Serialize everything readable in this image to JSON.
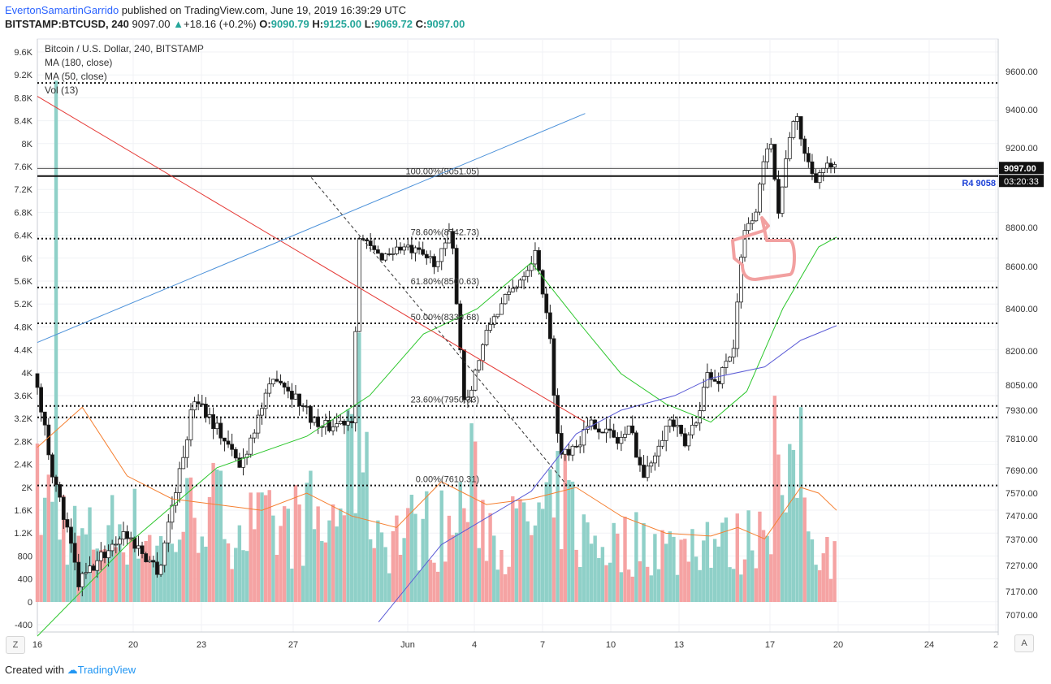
{
  "header": {
    "author": "EvertonSamartinGarrido",
    "published": "published on TradingView.com, June 19, 2019 16:39:29 UTC",
    "symbol": "BITSTAMP:BTCUSD, 240",
    "price": "9097.00",
    "change": "+18.16 (+0.2%)",
    "o_label": "O:",
    "o": "9090.79",
    "h_label": "H:",
    "h": "9125.00",
    "l_label": "L:",
    "l": "9069.72",
    "c_label": "C:",
    "c": "9097.00"
  },
  "legend": {
    "title": "Bitcoin / U.S. Dollar, 240, BITSTAMP",
    "ma180": "MA (180, close)",
    "ma50": "MA (50, close)",
    "vol": "Vol (13)"
  },
  "footer": {
    "created": "Created with",
    "brand": "TradingView"
  },
  "buttons": {
    "left": "Z",
    "right": "A"
  },
  "colors": {
    "up": "#26a69a",
    "down": "#ef5350",
    "vol_up": "#8fd0c8",
    "vol_down": "#f5a3a3",
    "ma180": "#5b5bd6",
    "ma50": "#2bc62b",
    "vol_ma": "#f57f30",
    "trend_red": "#e53935",
    "trend_blue": "#4a90d9"
  },
  "chart_data": {
    "type": "candlestick",
    "price_axis_ticks": [
      "9600.00",
      "9400.00",
      "9200.00",
      "8800.00",
      "8600.00",
      "8400.00",
      "8200.00",
      "8050.00",
      "7930.00",
      "7810.00",
      "7690.00",
      "7570.00",
      "7470.00",
      "7370.00",
      "7270.00",
      "7170.00",
      "7070.00"
    ],
    "volume_axis_ticks": [
      "9.6K",
      "9.2K",
      "8.8K",
      "8.4K",
      "8K",
      "7.6K",
      "7.2K",
      "6.8K",
      "6.4K",
      "6K",
      "5.6K",
      "5.2K",
      "4.8K",
      "4.4K",
      "4K",
      "3.6K",
      "3.2K",
      "2.8K",
      "2.4K",
      "2K",
      "1.6K",
      "1.2K",
      "800",
      "400",
      "0",
      "-400"
    ],
    "x_ticks": [
      "16",
      "20",
      "23",
      "27",
      "Jun",
      "4",
      "7",
      "10",
      "13",
      "17",
      "20",
      "24",
      "2"
    ],
    "last_price_label": "9097.00",
    "countdown_label": "03:20:33",
    "pivot_label": "R4 9058",
    "fib_levels": [
      {
        "label": "100.00%(9051.05)",
        "price": 9051.05
      },
      {
        "label": "78.60%(8742.73)",
        "price": 8742.73
      },
      {
        "label": "61.80%(8500.63)",
        "price": 8500.63
      },
      {
        "label": "50.00%(8330.68)",
        "price": 8330.68
      },
      {
        "label": "23.60%(7950.33)",
        "price": 7950.33
      },
      {
        "label": "0.00%(7610.31)",
        "price": 7610.31
      }
    ],
    "hlines": [
      9540,
      9097,
      9058,
      8742.73,
      8500.63,
      8330.68,
      7950.33,
      7900,
      7610.31
    ],
    "trend_red": [
      [
        15.5,
        9470
      ],
      [
        21.6,
        7880
      ]
    ],
    "trend_blue": [
      [
        15.5,
        8240
      ],
      [
        21.6,
        9380
      ]
    ],
    "fib_dash": [
      [
        18.55,
        9051.05
      ],
      [
        21.4,
        7610.31
      ]
    ],
    "price_anchors": [
      [
        15.5,
        8100
      ],
      [
        15.75,
        7600
      ],
      [
        16.0,
        7200
      ],
      [
        16.5,
        7400
      ],
      [
        16.9,
        7250
      ],
      [
        17.3,
        8000
      ],
      [
        17.8,
        7700
      ],
      [
        18.2,
        8100
      ],
      [
        18.7,
        7850
      ],
      [
        19.05,
        7900
      ],
      [
        19.12,
        8750
      ],
      [
        19.35,
        8650
      ],
      [
        19.6,
        8700
      ],
      [
        19.85,
        8650
      ],
      [
        20.0,
        8620
      ],
      [
        20.15,
        8780
      ],
      [
        20.3,
        7950
      ],
      [
        20.6,
        8350
      ],
      [
        20.85,
        8500
      ],
      [
        21.0,
        8600
      ],
      [
        21.1,
        8680
      ],
      [
        21.25,
        8250
      ],
      [
        21.35,
        7750
      ],
      [
        21.55,
        7800
      ],
      [
        21.75,
        7880
      ],
      [
        22.0,
        7800
      ],
      [
        22.15,
        7850
      ],
      [
        22.3,
        7650
      ],
      [
        22.45,
        7800
      ],
      [
        22.6,
        7890
      ],
      [
        22.75,
        7780
      ],
      [
        22.9,
        7920
      ],
      [
        23.0,
        8100
      ],
      [
        23.1,
        8050
      ],
      [
        23.2,
        8150
      ],
      [
        23.3,
        8220
      ],
      [
        23.4,
        8750
      ],
      [
        23.55,
        8900
      ],
      [
        23.7,
        9300
      ],
      [
        23.8,
        8850
      ],
      [
        23.9,
        9250
      ],
      [
        24.0,
        9350
      ],
      [
        24.1,
        9150
      ],
      [
        24.2,
        9050
      ],
      [
        24.3,
        9100
      ],
      [
        24.4,
        9097
      ]
    ],
    "volume_anchors": [
      [
        15.5,
        2100
      ],
      [
        15.75,
        1800
      ],
      [
        16.0,
        1200
      ],
      [
        16.5,
        1600
      ],
      [
        16.9,
        1100
      ],
      [
        17.3,
        2000
      ],
      [
        17.8,
        1500
      ],
      [
        18.2,
        1400
      ],
      [
        18.55,
        1700
      ],
      [
        18.7,
        1300
      ],
      [
        19.05,
        2800
      ],
      [
        19.35,
        1300
      ],
      [
        19.85,
        1500
      ],
      [
        20.15,
        1400
      ],
      [
        20.3,
        2400
      ],
      [
        20.6,
        1300
      ],
      [
        21.0,
        1500
      ],
      [
        21.25,
        1700
      ],
      [
        21.35,
        2200
      ],
      [
        21.55,
        1300
      ],
      [
        22.0,
        1100
      ],
      [
        22.3,
        1300
      ],
      [
        22.6,
        1000
      ],
      [
        22.9,
        1400
      ],
      [
        23.2,
        1100
      ],
      [
        23.4,
        1200
      ],
      [
        23.7,
        2200
      ],
      [
        23.9,
        2000
      ],
      [
        24.1,
        1500
      ],
      [
        24.3,
        1100
      ],
      [
        24.4,
        800
      ]
    ],
    "volume_spikes": [
      [
        15.72,
        9100,
        "down"
      ],
      [
        19.1,
        4700,
        "down"
      ],
      [
        21.45,
        2100,
        "up"
      ],
      [
        23.72,
        3600,
        "down"
      ],
      [
        24.0,
        3400,
        "down"
      ]
    ],
    "ma50_points": [
      [
        15.5,
        6980
      ],
      [
        16.5,
        7350
      ],
      [
        17.5,
        7700
      ],
      [
        18.5,
        7820
      ],
      [
        19.2,
        8000
      ],
      [
        19.8,
        8280
      ],
      [
        20.4,
        8400
      ],
      [
        21.0,
        8620
      ],
      [
        21.5,
        8350
      ],
      [
        22.0,
        8100
      ],
      [
        22.5,
        7960
      ],
      [
        23.0,
        7880
      ],
      [
        23.4,
        8020
      ],
      [
        23.8,
        8400
      ],
      [
        24.2,
        8700
      ],
      [
        24.4,
        8750
      ]
    ],
    "ma180_points": [
      [
        19.3,
        7040
      ],
      [
        20.0,
        7350
      ],
      [
        21.0,
        7580
      ],
      [
        21.5,
        7830
      ],
      [
        22.0,
        7930
      ],
      [
        22.6,
        8000
      ],
      [
        23.0,
        8080
      ],
      [
        23.6,
        8130
      ],
      [
        24.0,
        8250
      ],
      [
        24.4,
        8320
      ]
    ],
    "vol_ma_points": [
      [
        15.5,
        2700
      ],
      [
        16.0,
        3400
      ],
      [
        16.5,
        2200
      ],
      [
        17.0,
        1800
      ],
      [
        17.5,
        1700
      ],
      [
        18.0,
        1600
      ],
      [
        18.5,
        1900
      ],
      [
        19.0,
        1500
      ],
      [
        19.5,
        1300
      ],
      [
        20.0,
        2100
      ],
      [
        20.5,
        1700
      ],
      [
        21.0,
        1800
      ],
      [
        21.5,
        2000
      ],
      [
        22.0,
        1500
      ],
      [
        22.5,
        1200
      ],
      [
        23.0,
        1150
      ],
      [
        23.3,
        1300
      ],
      [
        23.6,
        1100
      ],
      [
        24.0,
        2000
      ],
      [
        24.2,
        1900
      ],
      [
        24.4,
        1600
      ]
    ]
  }
}
